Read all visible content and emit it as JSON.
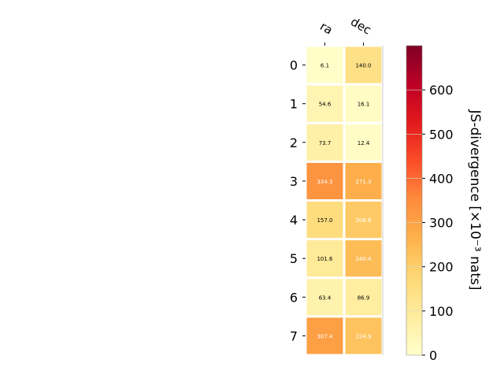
{
  "chart_data": {
    "type": "heatmap",
    "columns": [
      "ra",
      "dec"
    ],
    "rows": [
      "0",
      "1",
      "2",
      "3",
      "4",
      "5",
      "6",
      "7"
    ],
    "values": [
      [
        6.1,
        140.0
      ],
      [
        54.6,
        16.1
      ],
      [
        73.7,
        12.4
      ],
      [
        334.3,
        271.3
      ],
      [
        157.0,
        208.6
      ],
      [
        101.6,
        240.4
      ],
      [
        63.4,
        86.9
      ],
      [
        307.4,
        224.9
      ]
    ],
    "value_labels": [
      [
        "6.1",
        "140.0"
      ],
      [
        "54.6",
        "16.1"
      ],
      [
        "73.7",
        "12.4"
      ],
      [
        "334.3",
        "271.3"
      ],
      [
        "157.0",
        "208.6"
      ],
      [
        "101.6",
        "240.4"
      ],
      [
        "63.4",
        "86.9"
      ],
      [
        "307.4",
        "224.9"
      ]
    ],
    "colorbar": {
      "label": "JS-divergence [×10⁻³ nats]",
      "range": [
        0,
        700
      ],
      "ticks": [
        0,
        100,
        200,
        300,
        400,
        500,
        600
      ],
      "colormap": "YlOrRd",
      "colormap_stops": [
        "#ffffcc",
        "#ffeda0",
        "#fed976",
        "#feb24c",
        "#fd8d3c",
        "#fc4e2a",
        "#e31a1c",
        "#bd0026",
        "#800026"
      ]
    },
    "grid": false,
    "colorbar_position": "right"
  }
}
